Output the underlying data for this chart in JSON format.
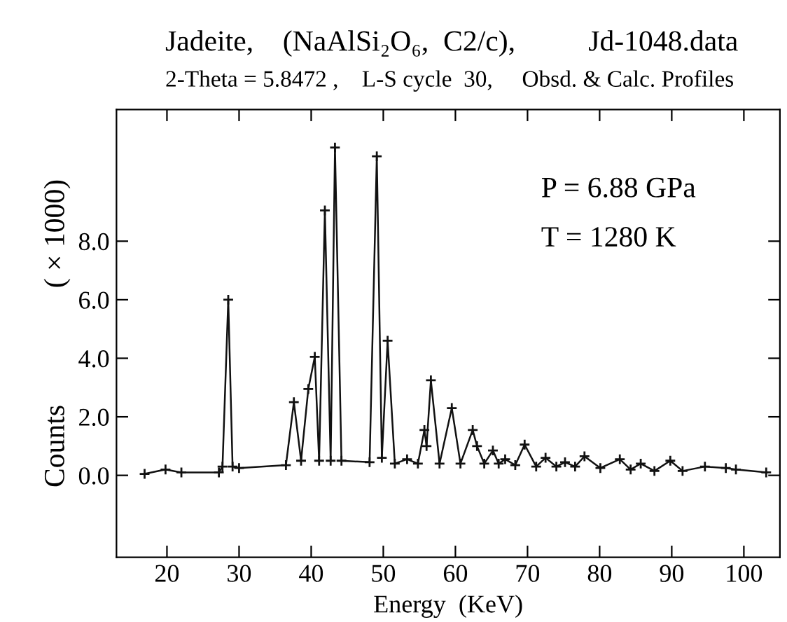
{
  "chart_data": {
    "type": "line",
    "title": "Jadeite,    (NaAlSi₂O₆,  C2/c),          Jd-1048.data",
    "subtitle": "2-Theta = 5.8472 ,    L-S cycle  30,     Obsd. & Calc. Profiles",
    "xlabel": "Energy  (KeV)",
    "ylabel": "Counts                ( × 1000)",
    "annotations": [
      "P = 6.88 GPa",
      "T = 1280 K"
    ],
    "series": [
      {
        "color": "#111111",
        "x": [
          16.9,
          19.8,
          22,
          27.2,
          27.7,
          28.5,
          29.1,
          30,
          36.5,
          37.6,
          38.6,
          39.6,
          40.5,
          41.1,
          41.9,
          42.7,
          43.3,
          44.2,
          48.1,
          49.1,
          49.8,
          50.6,
          51.6,
          53.3,
          54.8,
          55.7,
          56.0,
          56.6,
          57.8,
          59.5,
          60.7,
          62.4,
          63.0,
          64.0,
          65.2,
          66.0,
          66.9,
          68.3,
          69.6,
          71.2,
          72.5,
          74.0,
          75.2,
          76.6,
          77.9,
          80.1,
          82.8,
          84.3,
          85.7,
          87.6,
          89.8,
          91.5,
          94.6,
          97.5,
          98.9,
          103.1
        ],
        "values": [
          0.05,
          0.2,
          0.1,
          0.1,
          0.3,
          6.0,
          0.3,
          0.25,
          0.35,
          2.5,
          0.5,
          2.95,
          4.05,
          0.5,
          9.05,
          0.5,
          11.2,
          0.5,
          0.45,
          10.9,
          0.6,
          4.6,
          0.4,
          0.55,
          0.4,
          1.55,
          1.0,
          3.25,
          0.4,
          2.3,
          0.4,
          1.55,
          1.0,
          0.4,
          0.85,
          0.4,
          0.55,
          0.35,
          1.05,
          0.3,
          0.6,
          0.3,
          0.45,
          0.3,
          0.65,
          0.25,
          0.55,
          0.2,
          0.4,
          0.15,
          0.5,
          0.15,
          0.3,
          0.25,
          0.2,
          0.1
        ]
      }
    ],
    "marker": "cross",
    "line_style": "solid",
    "xlim": [
      13,
      105
    ],
    "ylim": [
      -2.8,
      12.5
    ],
    "xticks": [
      20,
      30,
      40,
      50,
      60,
      70,
      80,
      90,
      100
    ],
    "yticks": [
      {
        "value": 0,
        "label": "0.0"
      },
      {
        "value": 2,
        "label": "2.0"
      },
      {
        "value": 4,
        "label": "4.0"
      },
      {
        "value": 6,
        "label": "6.0"
      },
      {
        "value": 8,
        "label": "8.0"
      }
    ],
    "grid": false,
    "legend": false
  }
}
